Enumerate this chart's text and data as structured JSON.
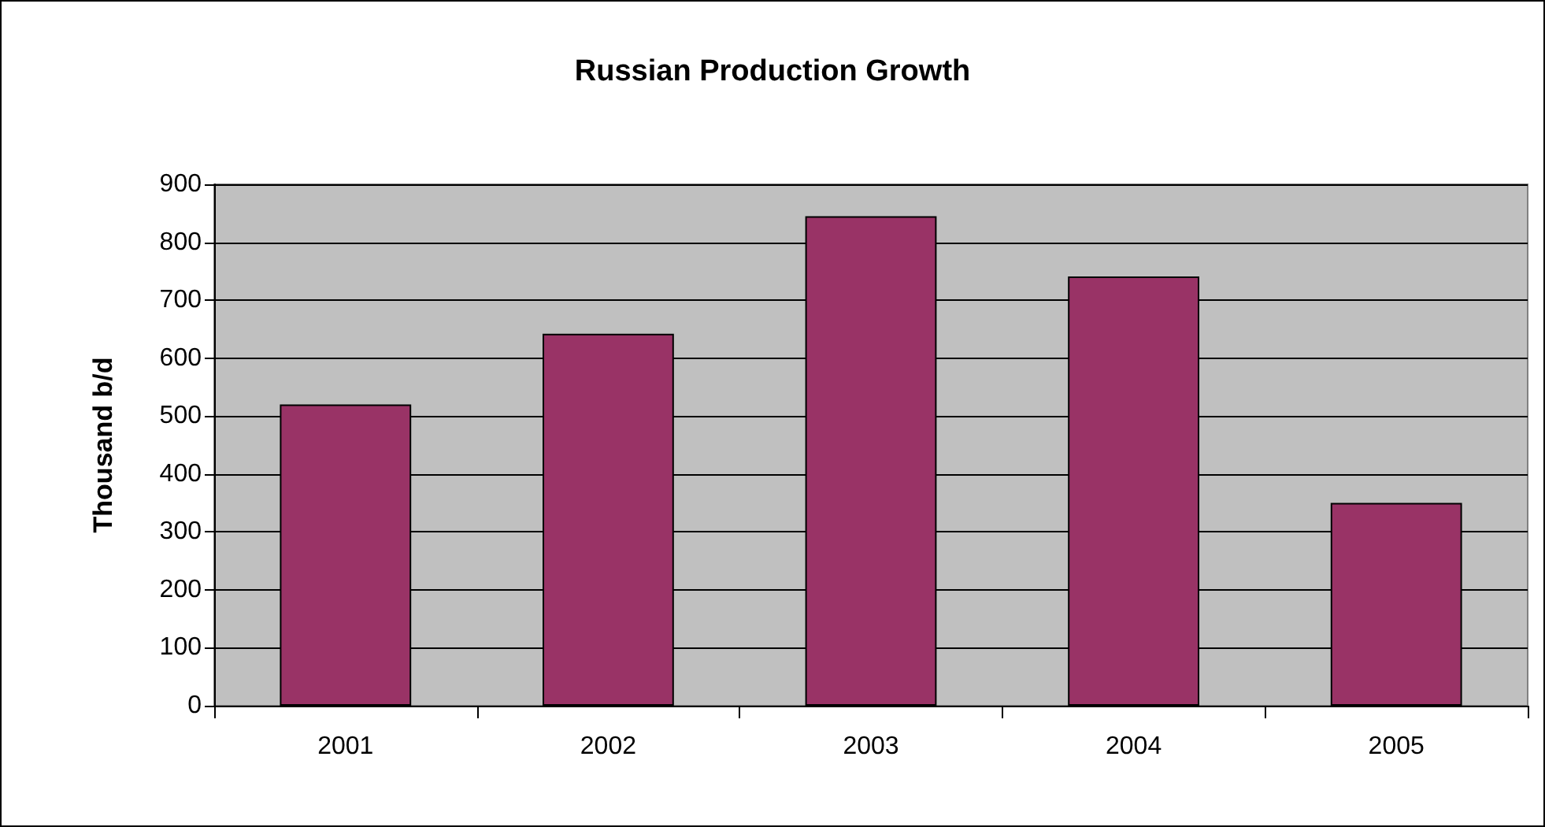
{
  "chart_data": {
    "type": "bar",
    "title": "Russian Production Growth",
    "ylabel": "Thousand b/d",
    "categories": [
      "2001",
      "2002",
      "2003",
      "2004",
      "2005"
    ],
    "values": [
      520,
      642,
      845,
      741,
      350
    ],
    "color": "#993366",
    "ylim": [
      0,
      900
    ],
    "yticks": [
      0,
      100,
      200,
      300,
      400,
      500,
      600,
      700,
      800,
      900
    ],
    "grid": "y"
  }
}
